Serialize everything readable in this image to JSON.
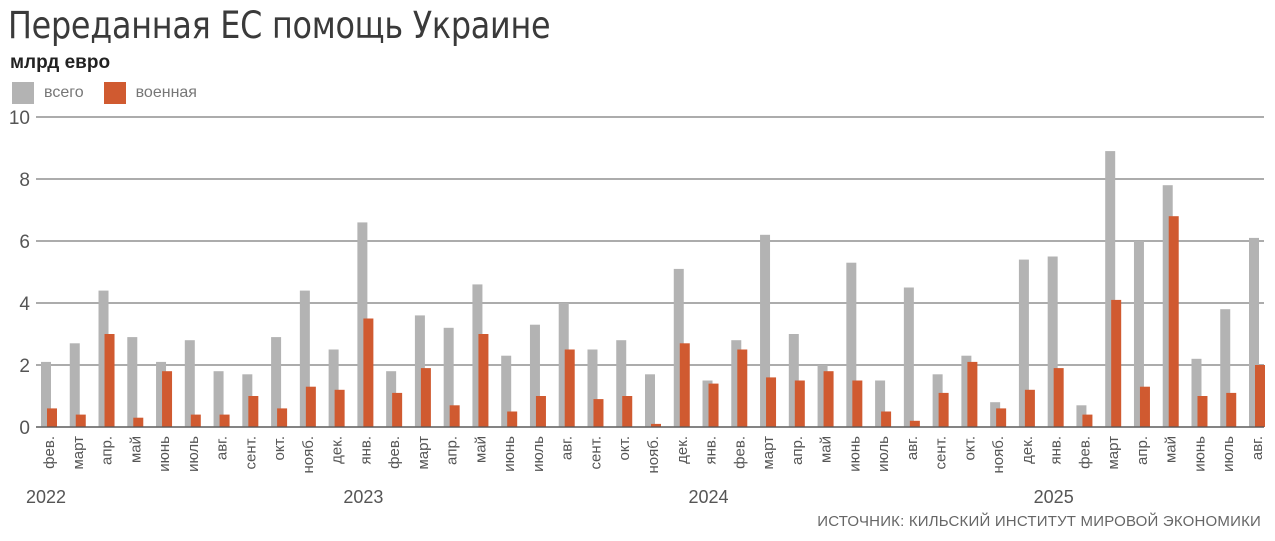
{
  "header": {
    "title": "Переданная ЕС помощь Украине",
    "unit": "млрд евро"
  },
  "legend": [
    {
      "label": "всего",
      "color": "#b3b3b3"
    },
    {
      "label": "военная",
      "color": "#d05a30"
    }
  ],
  "footer": {
    "source": "ИСТОЧНИК: КИЛЬСКИЙ ИНСТИТУТ МИРОВОЙ ЭКОНОМИКИ"
  },
  "chart_data": {
    "type": "bar",
    "title": "Переданная ЕС помощь Украине",
    "ylabel": "млрд евро",
    "xlabel": "",
    "ylim": [
      0,
      10
    ],
    "yticks": [
      0,
      2,
      4,
      6,
      8,
      10
    ],
    "grid": true,
    "legend_position": "top-left",
    "categories": [
      "фев.",
      "март",
      "апр.",
      "май",
      "июнь",
      "июль",
      "авг.",
      "сент.",
      "окт.",
      "нояб.",
      "дек.",
      "янв.",
      "фев.",
      "март",
      "апр.",
      "май",
      "июнь",
      "июль",
      "авг.",
      "сент.",
      "окт.",
      "нояб.",
      "дек.",
      "янв.",
      "фев.",
      "март",
      "апр.",
      "май",
      "июнь",
      "июль",
      "авг.",
      "сент.",
      "окт.",
      "нояб.",
      "дек.",
      "янв.",
      "фев.",
      "март",
      "апр.",
      "май",
      "июнь",
      "июль",
      "авг."
    ],
    "year_labels": [
      {
        "label": "2022",
        "index": 0
      },
      {
        "label": "2023",
        "index": 11
      },
      {
        "label": "2024",
        "index": 23
      },
      {
        "label": "2025",
        "index": 35
      }
    ],
    "series": [
      {
        "name": "всего",
        "color": "#b3b3b3",
        "values": [
          2.1,
          2.7,
          4.4,
          2.9,
          2.1,
          2.8,
          1.8,
          1.7,
          2.9,
          4.4,
          2.5,
          6.6,
          1.8,
          3.6,
          3.2,
          4.6,
          2.3,
          3.3,
          4.0,
          2.5,
          2.8,
          1.7,
          5.1,
          1.5,
          2.8,
          6.2,
          3.0,
          2.0,
          5.3,
          1.5,
          4.5,
          1.7,
          2.3,
          0.8,
          5.4,
          5.5,
          0.7,
          8.9,
          6.0,
          7.8,
          2.2,
          3.8,
          6.1
        ]
      },
      {
        "name": "военная",
        "color": "#d05a30",
        "values": [
          0.6,
          0.4,
          3.0,
          0.3,
          1.8,
          0.4,
          0.4,
          1.0,
          0.6,
          1.3,
          1.2,
          3.5,
          1.1,
          1.9,
          0.7,
          3.0,
          0.5,
          1.0,
          2.5,
          0.9,
          1.0,
          0.1,
          2.7,
          1.4,
          2.5,
          1.6,
          1.5,
          1.8,
          1.5,
          0.5,
          0.2,
          1.1,
          2.1,
          0.6,
          1.2,
          1.9,
          0.4,
          4.1,
          1.3,
          6.8,
          1.0,
          1.1,
          2.0
        ]
      }
    ]
  }
}
